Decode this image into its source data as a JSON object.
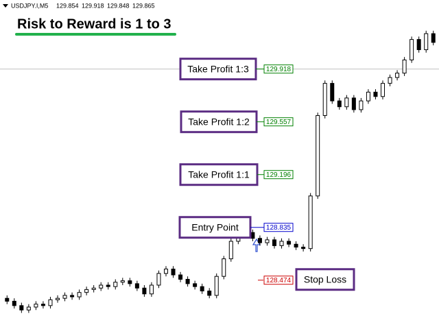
{
  "chart_data": {
    "type": "candlestick",
    "symbol": "USDJPY.I,M5",
    "header_prices": [
      129.854,
      129.918,
      129.848,
      129.865
    ],
    "title": "Risk to Reward is 1 to 3",
    "ylim": [
      128.14,
      130.39
    ],
    "color": "#000000",
    "open": [
      128.35,
      128.33,
      128.3,
      128.27,
      128.29,
      128.31,
      128.3,
      128.34,
      128.35,
      128.37,
      128.36,
      128.39,
      128.41,
      128.42,
      128.44,
      128.43,
      128.46,
      128.47,
      128.45,
      128.42,
      128.38,
      128.44,
      128.52,
      128.55,
      128.51,
      128.48,
      128.45,
      128.43,
      128.4,
      128.37,
      128.5,
      128.62,
      128.74,
      128.84,
      128.8,
      128.76,
      128.73,
      128.75,
      128.71,
      128.74,
      128.72,
      128.7,
      128.69,
      129.05,
      129.6,
      129.82,
      129.7,
      129.66,
      129.72,
      129.64,
      129.7,
      129.76,
      129.73,
      129.82,
      129.86,
      129.89,
      129.98,
      130.12,
      130.05,
      130.16
    ],
    "high": [
      128.37,
      128.35,
      128.32,
      128.31,
      128.33,
      128.33,
      128.36,
      128.37,
      128.39,
      128.39,
      128.41,
      128.43,
      128.44,
      128.46,
      128.46,
      128.48,
      128.49,
      128.49,
      128.47,
      128.44,
      128.46,
      128.54,
      128.57,
      128.57,
      128.53,
      128.5,
      128.47,
      128.45,
      128.42,
      128.52,
      128.64,
      128.76,
      128.86,
      128.86,
      128.82,
      128.78,
      128.77,
      128.77,
      128.76,
      128.76,
      128.74,
      128.72,
      129.07,
      129.62,
      129.84,
      129.84,
      129.72,
      129.74,
      129.74,
      129.72,
      129.78,
      129.78,
      129.84,
      129.88,
      129.91,
      130.0,
      130.14,
      130.14,
      130.18,
      130.18
    ],
    "low": [
      128.31,
      128.28,
      128.25,
      128.25,
      128.27,
      128.28,
      128.28,
      128.32,
      128.33,
      128.34,
      128.34,
      128.37,
      128.39,
      128.4,
      128.41,
      128.41,
      128.44,
      128.43,
      128.4,
      128.36,
      128.36,
      128.42,
      128.5,
      128.49,
      128.46,
      128.43,
      128.41,
      128.38,
      128.35,
      128.35,
      128.48,
      128.6,
      128.72,
      128.78,
      128.74,
      128.71,
      128.71,
      128.69,
      128.69,
      128.7,
      128.68,
      128.67,
      128.67,
      129.03,
      129.58,
      129.68,
      129.64,
      129.64,
      129.62,
      129.62,
      129.68,
      129.71,
      129.71,
      129.8,
      129.84,
      129.87,
      129.96,
      130.03,
      130.03,
      130.08
    ],
    "close": [
      128.33,
      128.3,
      128.27,
      128.29,
      128.31,
      128.3,
      128.34,
      128.35,
      128.37,
      128.36,
      128.39,
      128.41,
      128.42,
      128.44,
      128.43,
      128.46,
      128.47,
      128.45,
      128.42,
      128.38,
      128.44,
      128.52,
      128.55,
      128.51,
      128.48,
      128.45,
      128.43,
      128.4,
      128.37,
      128.5,
      128.62,
      128.74,
      128.84,
      128.8,
      128.76,
      128.73,
      128.75,
      128.71,
      128.74,
      128.72,
      128.7,
      128.69,
      129.05,
      129.6,
      129.82,
      129.7,
      129.66,
      129.72,
      129.64,
      129.7,
      129.76,
      129.73,
      129.82,
      129.86,
      129.89,
      129.98,
      130.12,
      130.05,
      130.16,
      130.1
    ],
    "levels": [
      {
        "label": "Take Profit 1:3",
        "price": 129.918,
        "color": "#008000"
      },
      {
        "label": "Take Profit 1:2",
        "price": 129.557,
        "color": "#008000"
      },
      {
        "label": "Take Profit 1:1",
        "price": 129.196,
        "color": "#008000"
      },
      {
        "label": "Entry Point",
        "price": 128.835,
        "color": "#0000cc"
      },
      {
        "label": "Stop Loss",
        "price": 128.474,
        "color": "#cc0000"
      }
    ]
  }
}
